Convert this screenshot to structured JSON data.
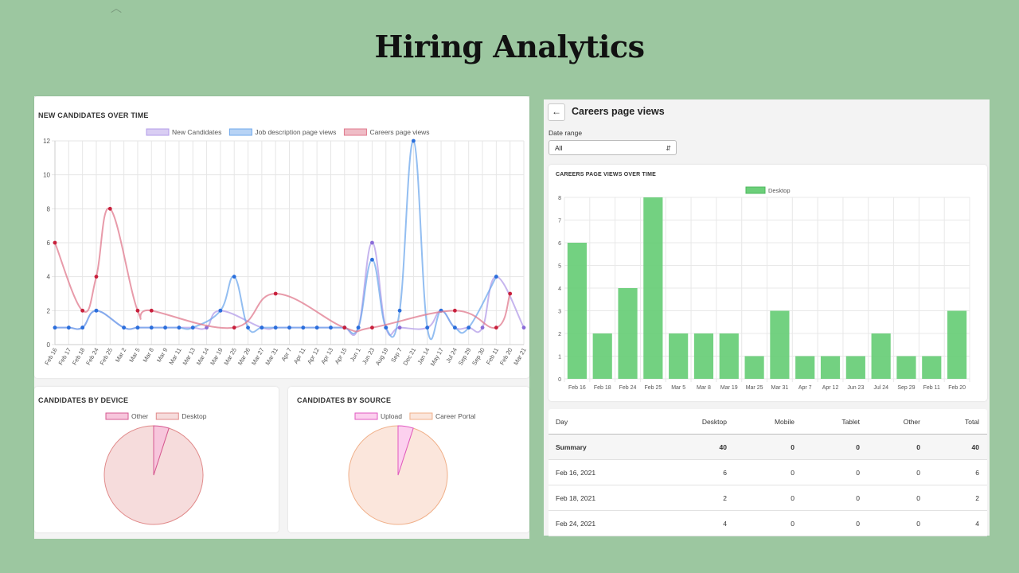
{
  "slide": {
    "title": "Hiring Analytics"
  },
  "left": {
    "line_card_title": "NEW CANDIDATES OVER TIME",
    "device_card_title": "CANDIDATES BY DEVICE",
    "source_card_title": "CANDIDATES BY SOURCE"
  },
  "right": {
    "back_icon": "arrow-left-icon",
    "page_title": "Careers page views",
    "date_range_label": "Date range",
    "date_range_value": "All",
    "bar_card_title": "CAREERS PAGE VIEWS OVER TIME",
    "table": {
      "headers": [
        "Day",
        "Desktop",
        "Mobile",
        "Tablet",
        "Other",
        "Total"
      ],
      "rows": [
        [
          "Summary",
          "40",
          "0",
          "0",
          "0",
          "40"
        ],
        [
          "Feb 16, 2021",
          "6",
          "0",
          "0",
          "0",
          "6"
        ],
        [
          "Feb 18, 2021",
          "2",
          "0",
          "0",
          "0",
          "2"
        ],
        [
          "Feb 24, 2021",
          "4",
          "0",
          "0",
          "0",
          "4"
        ]
      ]
    }
  },
  "chart_data": [
    {
      "type": "line",
      "title": "NEW CANDIDATES OVER TIME",
      "categories": [
        "Feb 16",
        "Feb 17",
        "Feb 18",
        "Feb 24",
        "Feb 25",
        "Mar 2",
        "Mar 5",
        "Mar 8",
        "Mar 9",
        "Mar 11",
        "Mar 13",
        "Mar 14",
        "Mar 19",
        "Mar 25",
        "Mar 26",
        "Mar 27",
        "Mar 31",
        "Apr 7",
        "Apr 11",
        "Apr 12",
        "Apr 13",
        "Apr 15",
        "Jun 1",
        "Jun 23",
        "Aug 19",
        "Sep 7",
        "Dec 21",
        "Jan 14",
        "May 17",
        "Jul 24",
        "Sep 29",
        "Sep 30",
        "Feb 11",
        "Feb 20",
        "Mar 21"
      ],
      "ylim": [
        0,
        12
      ],
      "yticks": [
        0,
        2,
        4,
        6,
        8,
        10,
        12
      ],
      "grid": true,
      "legend_position": "top-center",
      "series": [
        {
          "name": "New Candidates",
          "color": "#b39ce8",
          "values": [
            1,
            1,
            1,
            2,
            null,
            1,
            1,
            1,
            1,
            1,
            1,
            1,
            2,
            null,
            null,
            1,
            1,
            1,
            1,
            1,
            1,
            1,
            1,
            6,
            1,
            1,
            null,
            1,
            2,
            1,
            1,
            1,
            4,
            null,
            1
          ]
        },
        {
          "name": "Job description page views",
          "color": "#6fa8ec",
          "values": [
            1,
            1,
            1,
            2,
            null,
            1,
            1,
            1,
            1,
            1,
            1,
            null,
            2,
            4,
            1,
            1,
            1,
            1,
            1,
            1,
            1,
            1,
            1,
            5,
            1,
            2,
            12,
            1,
            2,
            1,
            1,
            null,
            4,
            null,
            null
          ]
        },
        {
          "name": "Careers page views",
          "color": "#e07a8e",
          "values": [
            6,
            null,
            2,
            4,
            8,
            null,
            2,
            2,
            null,
            null,
            null,
            null,
            null,
            1,
            null,
            null,
            3,
            null,
            null,
            null,
            null,
            1,
            null,
            1,
            null,
            null,
            null,
            null,
            null,
            2,
            null,
            null,
            1,
            3,
            null
          ]
        }
      ]
    },
    {
      "type": "pie",
      "title": "CANDIDATES BY DEVICE",
      "legend_position": "top-center",
      "labels": [
        "Other",
        "Desktop"
      ],
      "values": [
        1,
        19
      ],
      "colors": [
        "#f7c6dc",
        "#f6dcdc"
      ],
      "borders": [
        "#d65a92",
        "#e08a8a"
      ]
    },
    {
      "type": "pie",
      "title": "CANDIDATES BY SOURCE",
      "legend_position": "top-center",
      "labels": [
        "Upload",
        "Career Portal"
      ],
      "values": [
        1,
        19
      ],
      "colors": [
        "#fcd0ee",
        "#fbe6dc"
      ],
      "borders": [
        "#e05ac0",
        "#f0b08a"
      ]
    },
    {
      "type": "bar",
      "title": "CAREERS PAGE VIEWS OVER TIME",
      "categories": [
        "Feb 16",
        "Feb 18",
        "Feb 24",
        "Feb 25",
        "Mar 5",
        "Mar 8",
        "Mar 19",
        "Mar 25",
        "Mar 31",
        "Apr 7",
        "Apr 12",
        "Jun 23",
        "Jul 24",
        "Sep 29",
        "Feb 11",
        "Feb 20"
      ],
      "series": [
        {
          "name": "Desktop",
          "color": "#6ccf7a",
          "values": [
            6,
            2,
            4,
            8,
            2,
            2,
            2,
            1,
            3,
            1,
            1,
            1,
            2,
            1,
            1,
            3
          ]
        }
      ],
      "ylim": [
        0,
        8
      ],
      "yticks": [
        0,
        1,
        2,
        3,
        4,
        5,
        6,
        7,
        8
      ],
      "grid": true,
      "legend_position": "top-center"
    }
  ]
}
